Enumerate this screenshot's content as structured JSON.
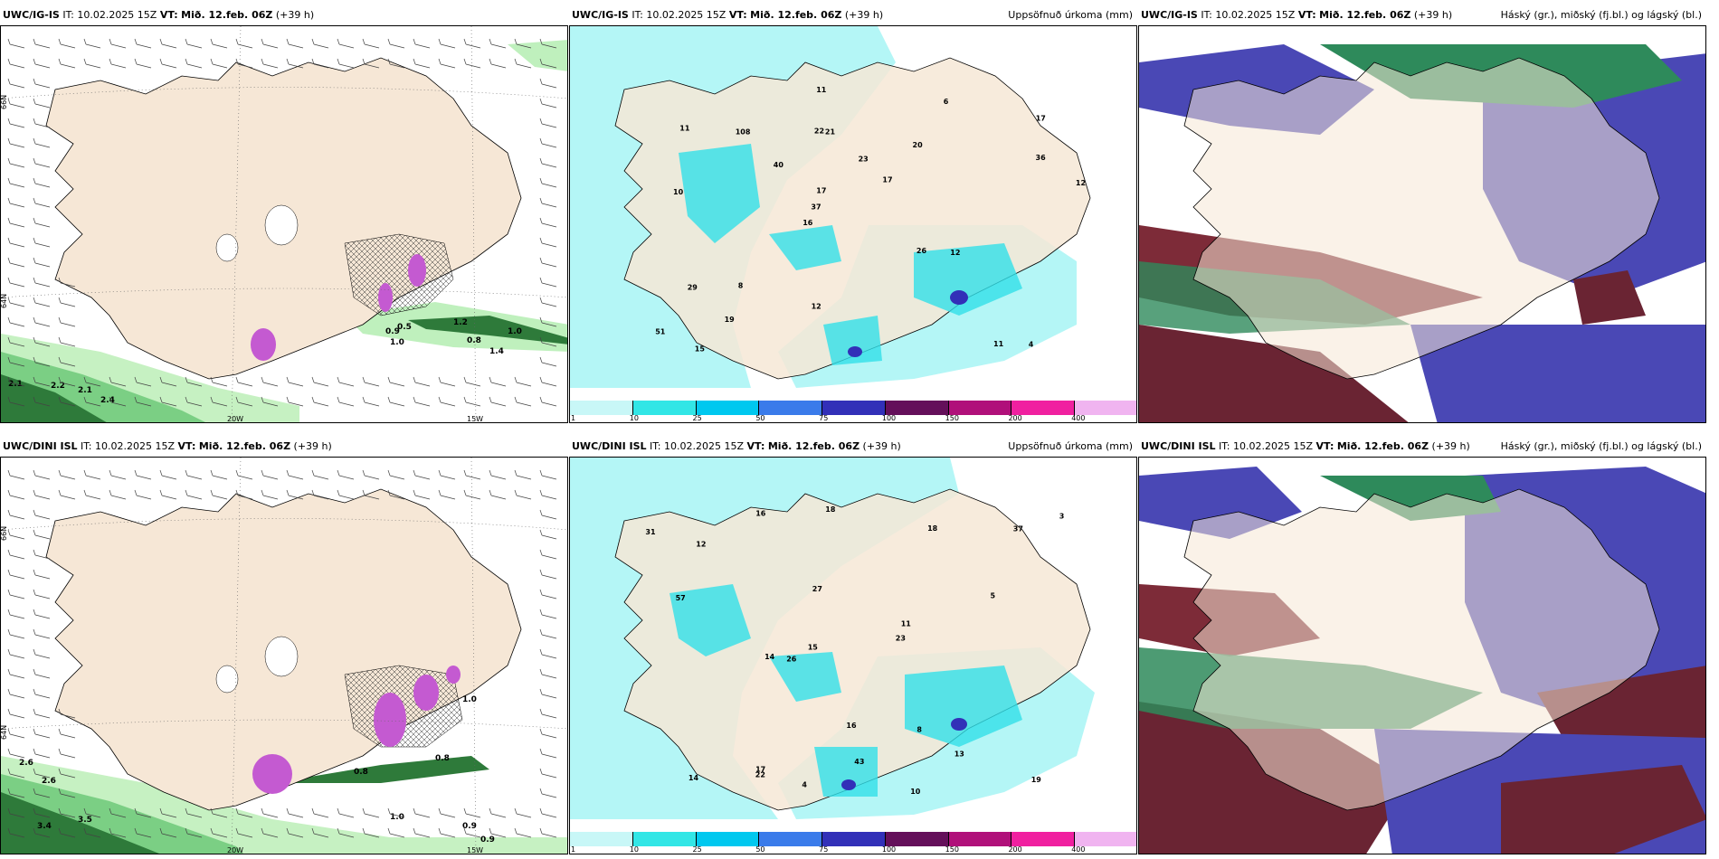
{
  "rows": [
    {
      "panels": [
        {
          "model": "UWC/IG-IS",
          "it_label": "IT:",
          "it_value": "10.02.2025 15Z",
          "vt_label": "VT:",
          "vt_value": "Mið. 12.feb. 06Z",
          "lead": "(+39 h)",
          "right_title": ""
        },
        {
          "model": "UWC/IG-IS",
          "it_label": "IT:",
          "it_value": "10.02.2025 15Z",
          "vt_label": "VT:",
          "vt_value": "Mið. 12.feb. 06Z",
          "lead": "(+39 h)",
          "right_title": "Uppsöfnuð úrkoma (mm)"
        },
        {
          "model": "UWC/IG-IS",
          "it_label": "IT:",
          "it_value": "10.02.2025 15Z",
          "vt_label": "VT:",
          "vt_value": "Mið. 12.feb. 06Z",
          "lead": "(+39 h)",
          "right_title": "Háský (gr.), miðský (fj.bl.) og lágský (bl.)"
        }
      ]
    },
    {
      "panels": [
        {
          "model": "UWC/DINI ISL",
          "it_label": "IT:",
          "it_value": "10.02.2025 15Z",
          "vt_label": "VT:",
          "vt_value": "Mið. 12.feb. 06Z",
          "lead": "(+39 h)",
          "right_title": ""
        },
        {
          "model": "UWC/DINI ISL",
          "it_label": "IT:",
          "it_value": "10.02.2025 15Z",
          "vt_label": "VT:",
          "vt_value": "Mið. 12.feb. 06Z",
          "lead": "(+39 h)",
          "right_title": "Uppsöfnuð úrkoma (mm)"
        },
        {
          "model": "UWC/DINI ISL",
          "it_label": "IT:",
          "it_value": "10.02.2025 15Z",
          "vt_label": "VT:",
          "vt_value": "Mið. 12.feb. 06Z",
          "lead": "(+39 h)",
          "right_title": "Háský (gr.), miðský (fj.bl.) og lágský (bl.)"
        }
      ]
    }
  ],
  "grid_labels": {
    "lat_66": "66N",
    "lat_64": "64N",
    "lon_20": "20W",
    "lon_15": "15W"
  },
  "colorbar": {
    "labels": [
      "1",
      "10",
      "25",
      "50",
      "75",
      "100",
      "150",
      "200",
      "400"
    ],
    "colors": [
      "#c8f7f7",
      "#32e6e6",
      "#00c8ef",
      "#3a7bea",
      "#3230b8",
      "#640f5a",
      "#b0107a",
      "#f020a0",
      "#f0b4f0"
    ]
  },
  "colors": {
    "land": "#f6e7d6",
    "precip_light": "#b4f6f6",
    "precip_mid": "#32e0e8",
    "wind_green": "#1f6b2b",
    "high_cloud": "#6a2433",
    "mid_cloud": "#2e8a5b",
    "low_cloud": "#4a48b5"
  },
  "precip_labels_top": [
    "4",
    "10",
    "17",
    "16",
    "20",
    "15",
    "22",
    "23",
    "29",
    "40",
    "51",
    "19",
    "21",
    "17",
    "12",
    "11",
    "11",
    "12",
    "26",
    "36",
    "37",
    "12",
    "17",
    "108",
    "6",
    "8",
    "11"
  ],
  "precip_labels_bottom": [
    "4",
    "10",
    "17",
    "13",
    "16",
    "12",
    "14",
    "19",
    "18",
    "27",
    "37",
    "43",
    "15",
    "16",
    "18",
    "23",
    "57",
    "22",
    "26",
    "31",
    "8",
    "3",
    "11",
    "14",
    "5"
  ],
  "wind_labels_top": [
    "2.1",
    "2.2",
    "2.1",
    "2.4",
    "0.9",
    "0.5",
    "1.0",
    "1.2",
    "1.0",
    "0.8",
    "1.4"
  ],
  "wind_labels_bottom": [
    "2.6",
    "2.6",
    "3.4",
    "3.5",
    "0.8",
    "0.8",
    "1.0",
    "0.9",
    "0.9",
    "1.0"
  ]
}
